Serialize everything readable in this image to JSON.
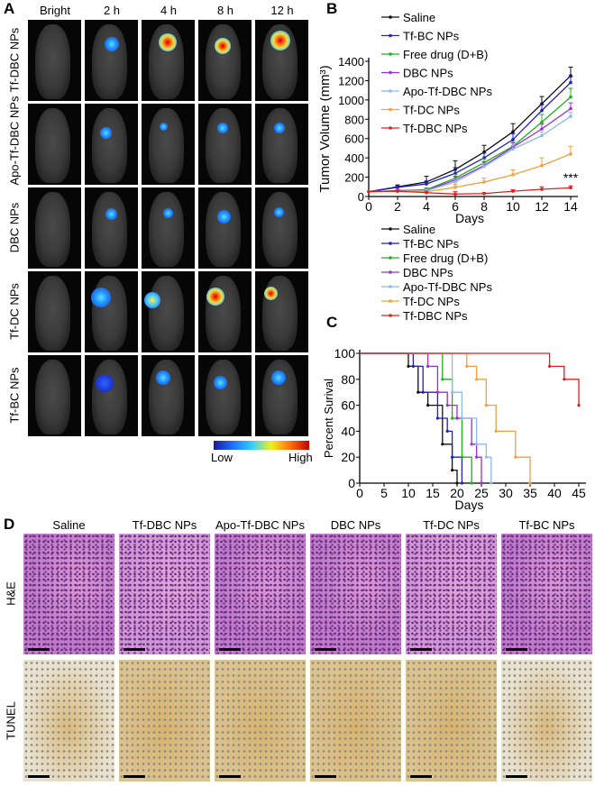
{
  "panel_a": {
    "label": "A",
    "columns": [
      "Bright",
      "2 h",
      "4 h",
      "8 h",
      "12 h"
    ],
    "rows": [
      "Tf-DBC NPs",
      "Apo-Tf-DBC NPs",
      "DBC NPs",
      "Tf-DC NPs",
      "Tf-BC NPs"
    ],
    "colorbar": {
      "low": "Low",
      "high": "High",
      "colors": [
        "#1a1a9a",
        "#1e6fff",
        "#30d0ff",
        "#f0f020",
        "#ff7010",
        "#c00000"
      ]
    }
  },
  "panel_d": {
    "label": "D",
    "columns": [
      "Saline",
      "Tf-DBC NPs",
      "Apo-Tf-DBC NPs",
      "DBC NPs",
      "Tf-DC NPs",
      "Tf-BC NPs"
    ],
    "rows": [
      "H&E",
      "TUNEL"
    ]
  },
  "chart_data": [
    {
      "panel": "B",
      "type": "line",
      "xlabel": "Days",
      "ylabel": "Tumor Volume (mm³)",
      "xlim": [
        0,
        14
      ],
      "ylim": [
        0,
        1400
      ],
      "xticks": [
        0,
        2,
        4,
        6,
        8,
        10,
        12,
        14
      ],
      "yticks": [
        0,
        200,
        400,
        600,
        800,
        1000,
        1200,
        1400
      ],
      "legend_position": "top-left",
      "annotation": "***",
      "x": [
        0,
        2,
        4,
        6,
        8,
        10,
        12,
        14
      ],
      "series": [
        {
          "name": "Saline",
          "color": "#111111",
          "values": [
            50,
            100,
            150,
            280,
            460,
            670,
            960,
            1250
          ],
          "error": [
            0,
            20,
            60,
            90,
            70,
            85,
            75,
            90
          ]
        },
        {
          "name": "Tf-BC NPs",
          "color": "#2020c0",
          "values": [
            50,
            95,
            130,
            240,
            400,
            590,
            890,
            1180
          ],
          "error": [
            0,
            15,
            30,
            60,
            50,
            60,
            60,
            60
          ]
        },
        {
          "name": "Free drug (D+B)",
          "color": "#20b020",
          "values": [
            50,
            60,
            70,
            190,
            350,
            520,
            770,
            1030
          ],
          "error": [
            0,
            10,
            20,
            40,
            40,
            50,
            80,
            90
          ]
        },
        {
          "name": "DBC NPs",
          "color": "#9a30d0",
          "values": [
            50,
            60,
            65,
            170,
            320,
            510,
            700,
            910
          ],
          "error": [
            0,
            10,
            15,
            40,
            40,
            45,
            50,
            60
          ]
        },
        {
          "name": "Apo-Tf-DBC NPs",
          "color": "#90b8e8",
          "values": [
            50,
            55,
            60,
            150,
            310,
            490,
            630,
            830
          ],
          "error": [
            0,
            10,
            15,
            30,
            30,
            40,
            40,
            40
          ]
        },
        {
          "name": "Tf-DC NPs",
          "color": "#f0a040",
          "values": [
            50,
            55,
            50,
            95,
            150,
            225,
            320,
            440
          ],
          "error": [
            0,
            10,
            10,
            30,
            40,
            50,
            80,
            80
          ]
        },
        {
          "name": "Tf-DBC NPs",
          "color": "#e02020",
          "values": [
            50,
            55,
            40,
            25,
            30,
            55,
            75,
            90
          ],
          "error": [
            0,
            10,
            15,
            25,
            10,
            15,
            25,
            20
          ]
        }
      ]
    },
    {
      "panel": "C",
      "type": "line",
      "step": true,
      "xlabel": "Days",
      "ylabel": "Percent Surival",
      "xlim": [
        0,
        45
      ],
      "ylim": [
        0,
        100
      ],
      "xticks": [
        0,
        5,
        10,
        15,
        20,
        25,
        30,
        35,
        40,
        45
      ],
      "yticks": [
        0,
        20,
        40,
        60,
        80,
        100
      ],
      "legend_position": "top",
      "series": [
        {
          "name": "Saline",
          "color": "#111111",
          "points": [
            [
              0,
              100
            ],
            [
              10,
              90
            ],
            [
              12,
              70
            ],
            [
              14,
              60
            ],
            [
              17,
              30
            ],
            [
              19,
              10
            ],
            [
              20,
              0
            ]
          ]
        },
        {
          "name": "Tf-BC NPs",
          "color": "#2020c0",
          "points": [
            [
              0,
              100
            ],
            [
              11,
              90
            ],
            [
              13,
              70
            ],
            [
              16,
              50
            ],
            [
              18,
              40
            ],
            [
              19,
              20
            ],
            [
              21,
              0
            ]
          ]
        },
        {
          "name": "Free drug (D+B)",
          "color": "#20b020",
          "points": [
            [
              0,
              100
            ],
            [
              17,
              80
            ],
            [
              19,
              50
            ],
            [
              21,
              20
            ],
            [
              23,
              0
            ]
          ]
        },
        {
          "name": "DBC NPs",
          "color": "#9a30d0",
          "points": [
            [
              0,
              100
            ],
            [
              14,
              90
            ],
            [
              16,
              70
            ],
            [
              18,
              60
            ],
            [
              20,
              50
            ],
            [
              23,
              30
            ],
            [
              24,
              20
            ],
            [
              25,
              0
            ]
          ]
        },
        {
          "name": "Apo-Tf-DBC NPs",
          "color": "#90b8e8",
          "points": [
            [
              0,
              100
            ],
            [
              19,
              70
            ],
            [
              21,
              50
            ],
            [
              24,
              30
            ],
            [
              26,
              20
            ],
            [
              27,
              0
            ]
          ]
        },
        {
          "name": "Tf-DC NPs",
          "color": "#f0a040",
          "points": [
            [
              0,
              100
            ],
            [
              22,
              90
            ],
            [
              24,
              80
            ],
            [
              26,
              60
            ],
            [
              28,
              40
            ],
            [
              32,
              20
            ],
            [
              35,
              0
            ]
          ]
        },
        {
          "name": "Tf-DBC NPs",
          "color": "#e02020",
          "points": [
            [
              0,
              100
            ],
            [
              39,
              90
            ],
            [
              42,
              80
            ],
            [
              45,
              60
            ]
          ]
        }
      ]
    }
  ]
}
